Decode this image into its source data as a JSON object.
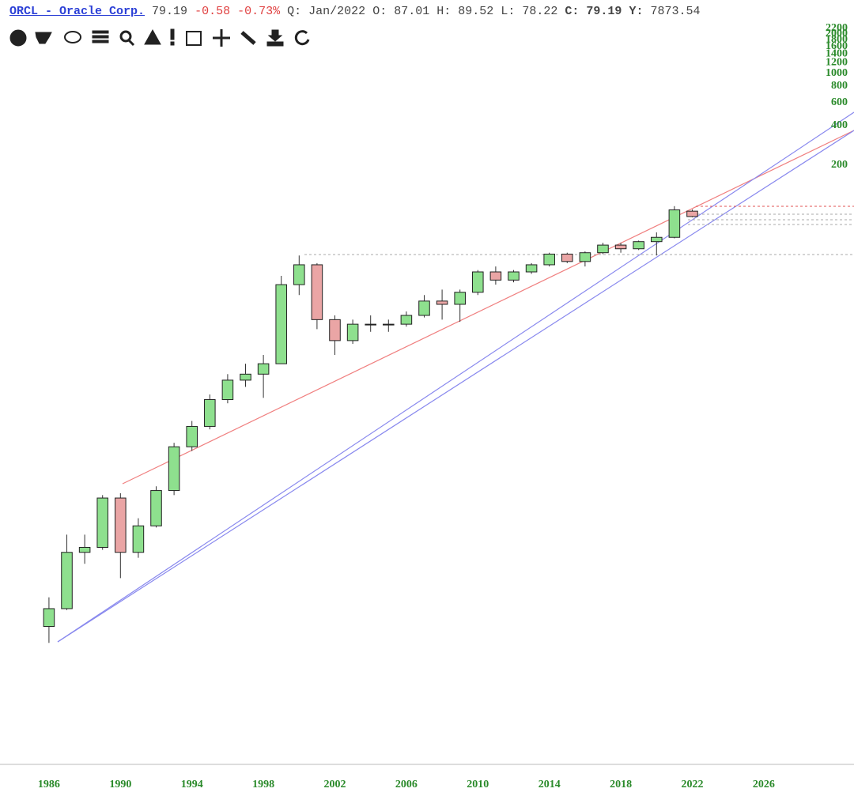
{
  "header": {
    "symbol": "ORCL - Oracle Corp.",
    "last": "79.19",
    "change": "-0.58",
    "change_pct": "-0.73%",
    "period": "Q: Jan/2022",
    "quote": [
      {
        "label": "O:",
        "value": "87.01"
      },
      {
        "label": "H:",
        "value": "89.52"
      },
      {
        "label": "L:",
        "value": "78.22"
      },
      {
        "label": "C:",
        "value": "79.19"
      },
      {
        "label": "Y:",
        "value": "7873.54"
      }
    ]
  },
  "chart_data": {
    "type": "candlestick",
    "log_scale": true,
    "x": [
      1986,
      1987,
      1988,
      1989,
      1990,
      1991,
      1992,
      1993,
      1994,
      1995,
      1996,
      1997,
      1998,
      1999,
      2000,
      2001,
      2002,
      2003,
      2004,
      2005,
      2006,
      2007,
      2008,
      2009,
      2010,
      2011,
      2012,
      2013,
      2014,
      2015,
      2016,
      2017,
      2018,
      2019,
      2020,
      2021,
      2022
    ],
    "open": [
      0.06,
      0.082,
      0.22,
      0.24,
      0.57,
      0.22,
      0.35,
      0.65,
      1.4,
      2.0,
      3.2,
      4.5,
      5.0,
      6.0,
      24,
      34,
      13,
      9,
      12,
      12,
      12,
      14,
      18,
      17,
      21,
      30,
      26,
      30,
      34,
      41,
      36,
      42,
      48,
      45,
      51,
      55,
      87.01
    ],
    "high": [
      0.1,
      0.3,
      0.3,
      0.6,
      0.62,
      0.4,
      0.7,
      1.5,
      2.2,
      3.5,
      5,
      6,
      7,
      28,
      40,
      35,
      14,
      13,
      14,
      13,
      15,
      20,
      22,
      22,
      31,
      33,
      31,
      35,
      42,
      42,
      43,
      50,
      50,
      52,
      60,
      95,
      89.52
    ],
    "low": [
      0.045,
      0.08,
      0.18,
      0.23,
      0.14,
      0.2,
      0.34,
      0.6,
      1.3,
      1.9,
      3,
      4,
      3.3,
      6,
      20,
      11,
      7,
      8.5,
      10.5,
      10.5,
      11.5,
      13.5,
      13,
      12.5,
      20,
      24,
      25,
      29,
      33,
      35,
      33,
      41,
      42,
      44,
      40,
      54,
      78.22
    ],
    "close": [
      0.082,
      0.22,
      0.24,
      0.57,
      0.22,
      0.35,
      0.65,
      1.4,
      2.0,
      3.2,
      4.5,
      5.0,
      6.0,
      24,
      34,
      13,
      9,
      12,
      12,
      12,
      14,
      18,
      17,
      21,
      30,
      26,
      30,
      34,
      41,
      36,
      42,
      48,
      45,
      51,
      55,
      89,
      79.19
    ],
    "up_color": "#8ee08e",
    "down_color": "#eaa5a5",
    "xlim": [
      1983.26,
      2031.05
    ],
    "xticks": [
      1986,
      1990,
      1994,
      1998,
      2002,
      2006,
      2010,
      2014,
      2018,
      2022,
      2026
    ],
    "ylim": [
      0.0055,
      2200
    ],
    "yticks": [
      200,
      400,
      600,
      800,
      1000,
      1200,
      1400,
      1600,
      1800,
      2000,
      2200
    ]
  }
}
